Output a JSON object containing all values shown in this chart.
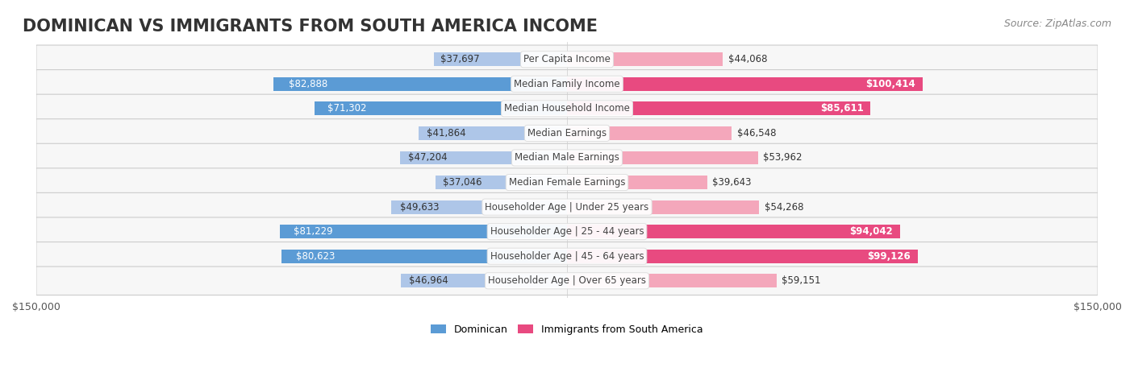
{
  "title": "DOMINICAN VS IMMIGRANTS FROM SOUTH AMERICA INCOME",
  "source": "Source: ZipAtlas.com",
  "categories": [
    "Per Capita Income",
    "Median Family Income",
    "Median Household Income",
    "Median Earnings",
    "Median Male Earnings",
    "Median Female Earnings",
    "Householder Age | Under 25 years",
    "Householder Age | 25 - 44 years",
    "Householder Age | 45 - 64 years",
    "Householder Age | Over 65 years"
  ],
  "dominican_values": [
    37697,
    82888,
    71302,
    41864,
    47204,
    37046,
    49633,
    81229,
    80623,
    46964
  ],
  "immigrant_values": [
    44068,
    100414,
    85611,
    46548,
    53962,
    39643,
    54268,
    94042,
    99126,
    59151
  ],
  "dominican_labels": [
    "$37,697",
    "$82,888",
    "$71,302",
    "$41,864",
    "$47,204",
    "$37,046",
    "$49,633",
    "$81,229",
    "$80,623",
    "$46,964"
  ],
  "immigrant_labels": [
    "$44,068",
    "$100,414",
    "$85,611",
    "$46,548",
    "$53,962",
    "$39,643",
    "$54,268",
    "$94,042",
    "$99,126",
    "$59,151"
  ],
  "dominican_color_light": "#aec6e8",
  "dominican_color_dark": "#5b9bd5",
  "immigrant_color_light": "#f4a7bb",
  "immigrant_color_dark": "#e84a80",
  "max_value": 150000,
  "legend_dominican": "Dominican",
  "legend_immigrant": "Immigrants from South America",
  "bg_row_color": "#f0f0f0",
  "bar_height": 0.55,
  "title_fontsize": 15,
  "label_fontsize": 8.5,
  "category_fontsize": 8.5,
  "source_fontsize": 9
}
